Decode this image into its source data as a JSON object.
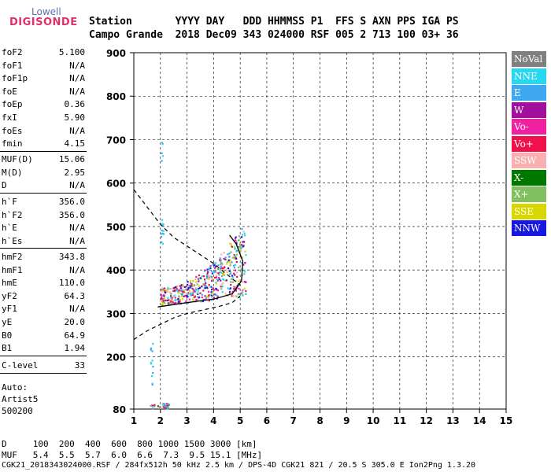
{
  "logo": {
    "line1": "Lowell",
    "line2": "DIGISONDE"
  },
  "header": {
    "row1": "Station       YYYY DAY   DDD HHMMSS P1  FFS S AXN PPS IGA PS",
    "row2": "Campo Grande  2018 Dec09 343 024000 RSF 005 2 713 100 03+ 36"
  },
  "params_group1": [
    {
      "name": "foF2",
      "value": "5.100"
    },
    {
      "name": "foF1",
      "value": "N/A"
    },
    {
      "name": "foF1p",
      "value": "N/A"
    },
    {
      "name": "foE",
      "value": "N/A"
    },
    {
      "name": "foEp",
      "value": "0.36"
    },
    {
      "name": "fxI",
      "value": "5.90"
    },
    {
      "name": "foEs",
      "value": "N/A"
    },
    {
      "name": "fmin",
      "value": "4.15"
    }
  ],
  "params_group2": [
    {
      "name": "MUF(D)",
      "value": "15.06"
    },
    {
      "name": "M(D)",
      "value": "2.95"
    },
    {
      "name": "D",
      "value": "N/A"
    }
  ],
  "params_group3": [
    {
      "name": "h`F",
      "value": "356.0"
    },
    {
      "name": "h`F2",
      "value": "356.0"
    },
    {
      "name": "h`E",
      "value": "N/A"
    },
    {
      "name": "h`Es",
      "value": "N/A"
    }
  ],
  "params_group4": [
    {
      "name": "hmF2",
      "value": "343.8"
    },
    {
      "name": "hmF1",
      "value": "N/A"
    },
    {
      "name": "hmE",
      "value": "110.0"
    },
    {
      "name": "yF2",
      "value": "64.3"
    },
    {
      "name": "yF1",
      "value": "N/A"
    },
    {
      "name": "yE",
      "value": "20.0"
    },
    {
      "name": "B0",
      "value": "64.9"
    },
    {
      "name": "B1",
      "value": "1.94"
    }
  ],
  "params_group5": [
    {
      "name": "C-level",
      "value": "33"
    }
  ],
  "auto": {
    "line1": "Auto:",
    "line2": "Artist5",
    "line3": "500200"
  },
  "legend": [
    {
      "label": "NoVal",
      "color": "#808080"
    },
    {
      "label": "NNE",
      "color": "#28d8f0"
    },
    {
      "label": "E",
      "color": "#40a8f0"
    },
    {
      "label": "W",
      "color": "#a0109c"
    },
    {
      "label": "Vo-",
      "color": "#f020a0"
    },
    {
      "label": "Vo+",
      "color": "#f0104c"
    },
    {
      "label": "SSW",
      "color": "#f8b0b0"
    },
    {
      "label": "X-",
      "color": "#007800"
    },
    {
      "label": "X+",
      "color": "#80c060"
    },
    {
      "label": "SSE",
      "color": "#d8d800"
    },
    {
      "label": "NNW",
      "color": "#1818e0"
    }
  ],
  "footer": {
    "row1": "D     100  200  400  600  800 1000 1500 3000 [km]",
    "row2": "MUF   5.4  5.5  5.7  6.0  6.6  7.3  9.5 15.1 [MHz]",
    "row3": "CGK21_2018343024000.RSF / 284fx512h 50 kHz 2.5 km / DPS-4D CGK21 821 / 20.5 S 305.0 E Ion2Png 1.3.20"
  },
  "chart_data": {
    "type": "scatter",
    "xlim": [
      1,
      15
    ],
    "ylim": [
      80,
      900
    ],
    "x_ticks": [
      1,
      2,
      3,
      4,
      5,
      6,
      7,
      8,
      9,
      10,
      11,
      12,
      13,
      14,
      15
    ],
    "y_ticks": [
      80,
      200,
      300,
      400,
      500,
      600,
      700,
      800,
      900
    ],
    "grid": "dashed",
    "legend_position": "right",
    "profile_solid": [
      [
        1.9,
        315
      ],
      [
        3.0,
        325
      ],
      [
        4.0,
        333
      ],
      [
        4.7,
        345
      ],
      [
        5.05,
        375
      ],
      [
        5.1,
        420
      ],
      [
        4.85,
        460
      ],
      [
        4.6,
        480
      ]
    ],
    "profile_dashed_lower": [
      [
        1.0,
        240
      ],
      [
        1.5,
        260
      ],
      [
        2.0,
        275
      ],
      [
        2.5,
        290
      ],
      [
        3.0,
        300
      ],
      [
        3.6,
        308
      ],
      [
        4.2,
        316
      ],
      [
        4.7,
        325
      ],
      [
        5.0,
        340
      ]
    ],
    "profile_dashed_upper": [
      [
        1.0,
        585
      ],
      [
        1.5,
        545
      ],
      [
        2.0,
        505
      ],
      [
        2.5,
        475
      ],
      [
        3.0,
        455
      ],
      [
        3.5,
        435
      ],
      [
        4.0,
        415
      ],
      [
        4.4,
        395
      ],
      [
        4.8,
        375
      ],
      [
        5.0,
        365
      ]
    ],
    "echo_clusters": [
      {
        "x": [
          2.0,
          5.2
        ],
        "y": [
          320,
          480
        ],
        "colors": [
          "E",
          "NNE",
          "Vo-",
          "Vo+",
          "W",
          "SSE",
          "X+",
          "SSW",
          "NNW"
        ],
        "count": 520
      },
      {
        "x": [
          2.0,
          2.1
        ],
        "y": [
          450,
          520
        ],
        "colors": [
          "NNE",
          "E"
        ],
        "count": 12
      },
      {
        "x": [
          2.0,
          2.06
        ],
        "y": [
          640,
          705
        ],
        "colors": [
          "NNE",
          "E"
        ],
        "count": 5
      },
      {
        "x": [
          1.6,
          1.7
        ],
        "y": [
          120,
          240
        ],
        "colors": [
          "NNE",
          "E"
        ],
        "count": 12
      },
      {
        "x": [
          1.6,
          2.3
        ],
        "y": [
          83,
          95
        ],
        "colors": [
          "X-",
          "X+",
          "Vo+",
          "E"
        ],
        "count": 30
      }
    ]
  }
}
